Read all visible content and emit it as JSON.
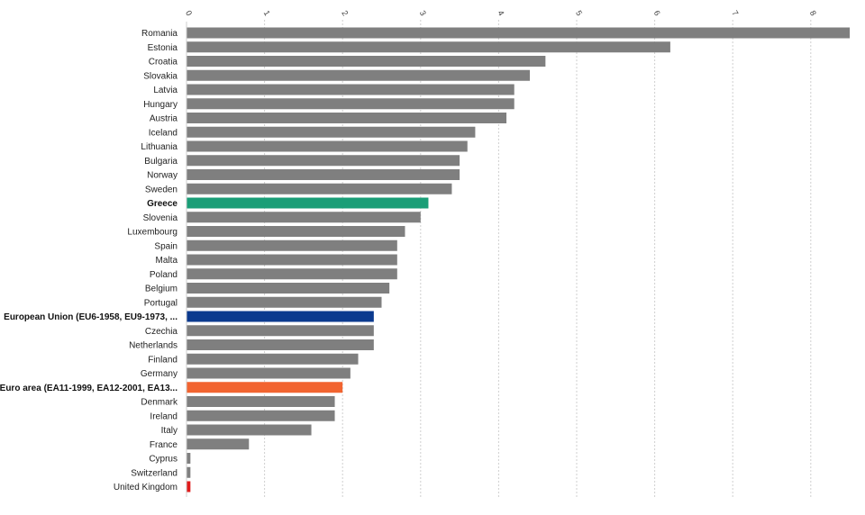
{
  "chart_data": {
    "type": "bar",
    "orientation": "horizontal",
    "title": "",
    "xlabel": "",
    "ylabel": "",
    "xlim": [
      0,
      8.5
    ],
    "x_ticks": [
      "0",
      "1",
      "2",
      "3",
      "4",
      "5",
      "6",
      "7",
      "8"
    ],
    "grid": true,
    "categories": [
      "Romania",
      "Estonia",
      "Croatia",
      "Slovakia",
      "Latvia",
      "Hungary",
      "Austria",
      "Iceland",
      "Lithuania",
      "Bulgaria",
      "Norway",
      "Sweden",
      "Greece",
      "Slovenia",
      "Luxembourg",
      "Spain",
      "Malta",
      "Poland",
      "Belgium",
      "Portugal",
      "European Union (EU6-1958, EU9-1973, ...",
      "Czechia",
      "Netherlands",
      "Finland",
      "Germany",
      "Euro area (EA11-1999, EA12-2001, EA13...",
      "Denmark",
      "Ireland",
      "Italy",
      "France",
      "Cyprus",
      "Switzerland",
      "United Kingdom"
    ],
    "values": [
      8.5,
      6.2,
      4.6,
      4.4,
      4.2,
      4.2,
      4.1,
      3.7,
      3.6,
      3.5,
      3.5,
      3.4,
      3.1,
      3.0,
      2.8,
      2.7,
      2.7,
      2.7,
      2.6,
      2.5,
      2.4,
      2.4,
      2.4,
      2.2,
      2.1,
      2.0,
      1.9,
      1.9,
      1.6,
      0.8,
      0.05,
      0.05,
      0.05
    ],
    "highlight": {
      "Greece": "#1a9e77",
      "European Union (EU6-1958, EU9-1973, ...": "#0b3a8f",
      "Euro area (EA11-1999, EA12-2001, EA13...": "#f26430",
      "United Kingdom": "#e01b1b"
    },
    "bold_categories": [
      "Greece",
      "European Union (EU6-1958, EU9-1973, ...",
      "Euro area (EA11-1999, EA12-2001, EA13..."
    ],
    "default_color": "#7f7f7f"
  }
}
